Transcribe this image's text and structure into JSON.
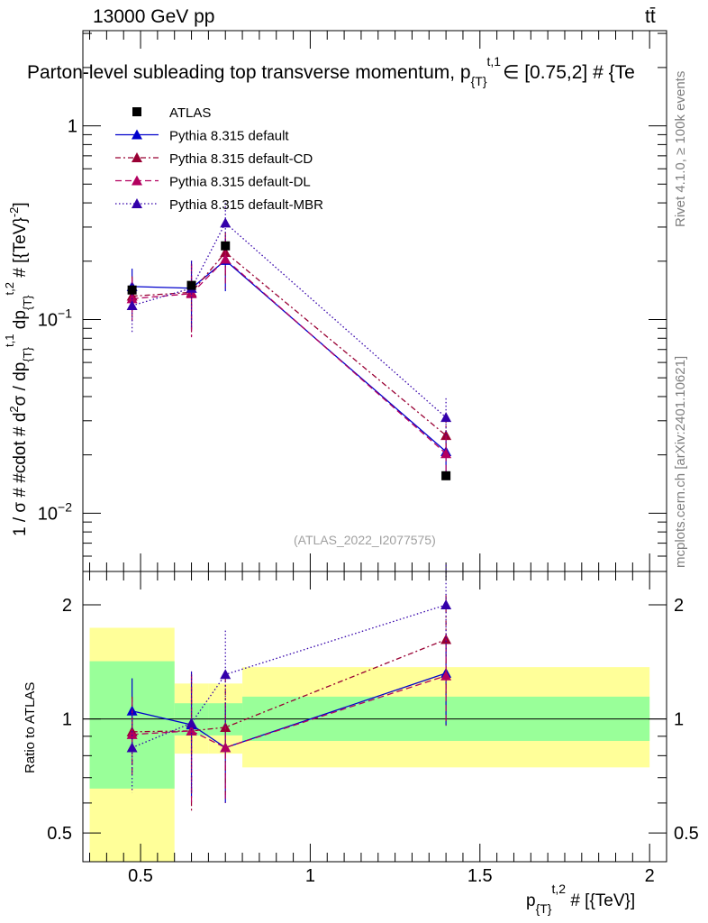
{
  "header": {
    "energy_label": "13000 GeV pp",
    "process_label": "tt̄",
    "title": "Parton-level subleading top transverse momentum, p_{T}^{t,1} ∈ [0.75,2] # {Te",
    "title_text": "Parton-level subleading top transverse momentum, p",
    "title_sub": "{T}",
    "title_sup": "t,1",
    "title_rest": "∈ [0.75,2] # {Te"
  },
  "side_labels": {
    "rivet": "Rivet 4.1.0, ≥ 100k events",
    "mcplots": "mcplots.cern.ch [arXiv:2401.10621]"
  },
  "watermark": "(ATLAS_2022_I2077575)",
  "chart_data": {
    "type": "scatter",
    "main": {
      "ylabel": "1 / σ # #cdot # d²σ / dp_{T}^{t,1} dp_{T}^{t,2} # [{TeV}^{-2}]",
      "ylabel_parts": [
        "1 / σ # #cdot # d",
        "2",
        "σ / dp",
        "{T}",
        "t,1",
        " dp",
        "{T}",
        "t,2",
        " # [{TeV}",
        "-2",
        "]"
      ],
      "yscale": "log",
      "ylim": [
        0.005,
        3.1
      ],
      "yticks": [
        {
          "value": 0.01,
          "base": "10",
          "exp": "−2"
        },
        {
          "value": 0.1,
          "base": "10",
          "exp": "−1"
        },
        {
          "value": 1,
          "base": "1",
          "exp": ""
        }
      ]
    },
    "ratio": {
      "ylabel": "Ratio to ATLAS",
      "yscale": "log",
      "ylim": [
        0.42,
        2.45
      ],
      "yticks": [
        0.5,
        1,
        2
      ],
      "band_inner": [
        {
          "x": [
            0.35,
            0.6
          ],
          "lo": 0.655,
          "hi": 1.42
        },
        {
          "x": [
            0.6,
            0.7
          ],
          "lo": 0.905,
          "hi": 1.1
        },
        {
          "x": [
            0.7,
            0.8
          ],
          "lo": 0.905,
          "hi": 1.1
        },
        {
          "x": [
            0.8,
            2.0
          ],
          "lo": 0.875,
          "hi": 1.145
        }
      ],
      "band_outer": [
        {
          "x": [
            0.35,
            0.6
          ],
          "lo": 0.42,
          "hi": 1.74
        },
        {
          "x": [
            0.6,
            0.7
          ],
          "lo": 0.81,
          "hi": 1.24
        },
        {
          "x": [
            0.7,
            0.8
          ],
          "lo": 0.81,
          "hi": 1.24
        },
        {
          "x": [
            0.8,
            2.0
          ],
          "lo": 0.745,
          "hi": 1.37
        }
      ]
    },
    "xlabel": "p_{T}^{t,2} # [{TeV}]",
    "xlabel_parts": [
      "p",
      "{T}",
      "t,2",
      " # [{TeV}]"
    ],
    "xlim": [
      0.33,
      2.05
    ],
    "xticks": [
      0.5,
      1,
      1.5,
      2
    ],
    "series": [
      {
        "name": "ATLAS",
        "color": "#000000",
        "marker": "square",
        "dash": "none",
        "x": [
          0.475,
          0.65,
          0.75,
          1.4
        ],
        "y": [
          0.142,
          0.15,
          0.24,
          0.0156
        ],
        "yerr_lo": [
          0,
          0,
          0,
          0
        ],
        "yerr_hi": [
          0,
          0,
          0,
          0
        ]
      },
      {
        "name": "Pythia 8.315 default",
        "color": "#0000cc",
        "marker": "triangle",
        "dash": "solid",
        "x": [
          0.475,
          0.65,
          0.75,
          1.4
        ],
        "y": [
          0.148,
          0.145,
          0.202,
          0.0208
        ],
        "yerr_lo": [
          0.03,
          0.056,
          0.062,
          0.0045
        ],
        "yerr_hi": [
          0.035,
          0.056,
          0.062,
          0.005
        ],
        "ratio": [
          1.05,
          0.965,
          0.84,
          1.32
        ],
        "ratio_err_lo": [
          0.21,
          0.34,
          0.24,
          0.36
        ],
        "ratio_err_hi": [
          0.23,
          0.36,
          0.26,
          0.36
        ]
      },
      {
        "name": "Pythia 8.315 default-CD",
        "color": "#990033",
        "marker": "triangle",
        "dash": "6,3,2,3",
        "x": [
          0.475,
          0.65,
          0.75,
          1.4
        ],
        "y": [
          0.132,
          0.138,
          0.222,
          0.0252
        ],
        "yerr_lo": [
          0.03,
          0.056,
          0.06,
          0.005
        ],
        "yerr_hi": [
          0.035,
          0.056,
          0.06,
          0.006
        ],
        "ratio": [
          0.925,
          0.93,
          0.95,
          1.62
        ],
        "ratio_err_lo": [
          0.2,
          0.36,
          0.32,
          0.48
        ],
        "ratio_err_hi": [
          0.22,
          0.38,
          0.34,
          0.5
        ]
      },
      {
        "name": "Pythia 8.315 default-DL",
        "color": "#b3005f",
        "marker": "triangle",
        "dash": "7,4",
        "x": [
          0.475,
          0.65,
          0.75,
          1.4
        ],
        "y": [
          0.128,
          0.136,
          0.205,
          0.0203
        ],
        "yerr_lo": [
          0.03,
          0.055,
          0.06,
          0.0045
        ],
        "yerr_hi": [
          0.035,
          0.055,
          0.06,
          0.005
        ],
        "ratio": [
          0.91,
          0.93,
          0.84,
          1.3
        ],
        "ratio_err_lo": [
          0.2,
          0.34,
          0.24,
          0.34
        ],
        "ratio_err_hi": [
          0.22,
          0.36,
          0.26,
          0.36
        ]
      },
      {
        "name": "Pythia 8.315 default-MBR",
        "color": "#3300aa",
        "marker": "triangle",
        "dash": "1.5,2.5",
        "x": [
          0.475,
          0.65,
          0.75,
          1.4
        ],
        "y": [
          0.118,
          0.145,
          0.315,
          0.0312
        ],
        "yerr_lo": [
          0.032,
          0.056,
          0.082,
          0.006
        ],
        "yerr_hi": [
          0.035,
          0.056,
          0.085,
          0.008
        ],
        "ratio": [
          0.84,
          0.975,
          1.31,
          2.0
        ],
        "ratio_err_lo": [
          0.2,
          0.34,
          0.36,
          0.55
        ],
        "ratio_err_hi": [
          0.22,
          0.36,
          0.4,
          0.55
        ]
      }
    ]
  }
}
